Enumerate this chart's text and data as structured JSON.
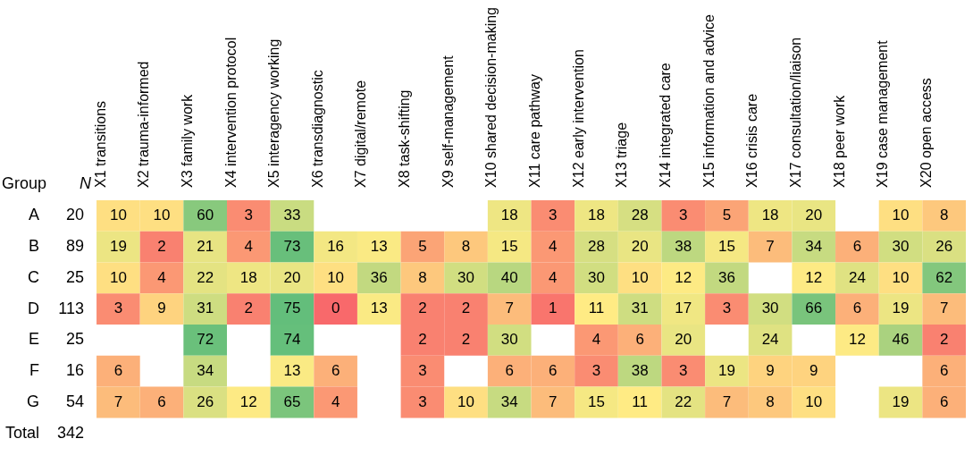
{
  "chart_data": {
    "type": "heatmap",
    "ylabel": "Group",
    "y2label": "N",
    "data_labels": true,
    "categories": [
      "X1 transitions",
      "X2 trauma-informed",
      "X3 family work",
      "X4 intervention protocol",
      "X5 interagency working",
      "X6 transdiagnostic",
      "X7 digital/remote",
      "X8 task-shifting",
      "X9 self-management",
      "X10 shared decision-making",
      "X11 care pathway",
      "X12 early intervention",
      "X13 triage",
      "X14 integrated care",
      "X15 information and advice",
      "X16 crisis care",
      "X17 consultation/liaison",
      "X18 peer work",
      "X19 case management",
      "X20 open access"
    ],
    "y_categories": [
      "A",
      "B",
      "C",
      "D",
      "E",
      "F",
      "G",
      "Total"
    ],
    "y2_categories": [
      "20",
      "89",
      "25",
      "113",
      "25",
      "16",
      "54",
      "342"
    ],
    "cells": [
      [
        10,
        10,
        60,
        3,
        33,
        null,
        null,
        null,
        null,
        18,
        3,
        18,
        28,
        3,
        5,
        18,
        20,
        null,
        10,
        8
      ],
      [
        19,
        2,
        21,
        4,
        73,
        16,
        13,
        5,
        8,
        15,
        4,
        28,
        20,
        38,
        15,
        7,
        34,
        6,
        30,
        26
      ],
      [
        10,
        4,
        22,
        18,
        20,
        10,
        36,
        8,
        30,
        40,
        4,
        30,
        10,
        12,
        36,
        null,
        12,
        24,
        10,
        62
      ],
      [
        3,
        9,
        31,
        2,
        75,
        0,
        13,
        2,
        2,
        7,
        1,
        11,
        31,
        17,
        3,
        30,
        66,
        6,
        19,
        7
      ],
      [
        null,
        null,
        72,
        null,
        74,
        null,
        null,
        2,
        2,
        30,
        null,
        4,
        6,
        20,
        null,
        24,
        null,
        12,
        46,
        2
      ],
      [
        6,
        null,
        34,
        null,
        13,
        6,
        null,
        3,
        null,
        6,
        6,
        3,
        38,
        3,
        19,
        9,
        9,
        null,
        null,
        6
      ],
      [
        7,
        6,
        26,
        12,
        65,
        4,
        null,
        3,
        10,
        34,
        7,
        15,
        11,
        22,
        7,
        8,
        10,
        null,
        19,
        6
      ],
      [
        null,
        null,
        null,
        null,
        null,
        null,
        null,
        null,
        null,
        null,
        null,
        null,
        null,
        null,
        null,
        null,
        null,
        null,
        null,
        null
      ]
    ]
  }
}
